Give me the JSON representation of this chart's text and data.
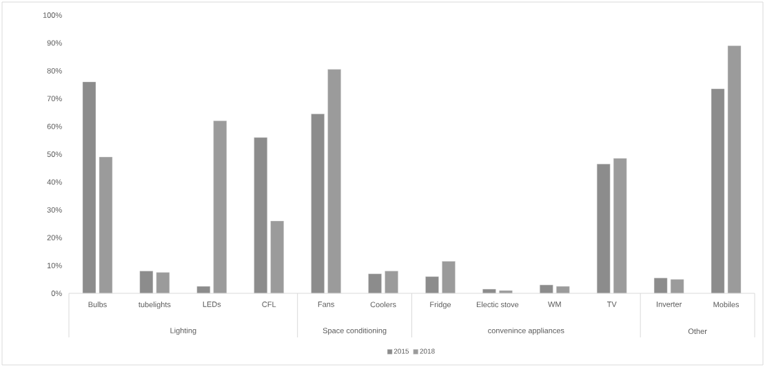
{
  "chart_data": {
    "type": "bar",
    "categories": [
      "Bulbs",
      "tubelights",
      "LEDs",
      "CFL",
      "Fans",
      "Coolers",
      "Fridge",
      "Electic stove",
      "WM",
      "TV",
      "Inverter",
      "Mobiles"
    ],
    "series": [
      {
        "name": "2015",
        "color": "#8c8c8c",
        "values": [
          76,
          8,
          2.5,
          56,
          64.5,
          7,
          6,
          1.5,
          3,
          46.5,
          5.5,
          73.5
        ]
      },
      {
        "name": "2018",
        "color": "#9b9b9b",
        "values": [
          49,
          7.5,
          62,
          26,
          80.5,
          8,
          11.5,
          1,
          2.5,
          48.5,
          5,
          89
        ]
      }
    ],
    "ylim": [
      0,
      100
    ],
    "yticks": [
      {
        "value": 0,
        "label": "0%"
      },
      {
        "value": 10,
        "label": "10%"
      },
      {
        "value": 20,
        "label": "20%"
      },
      {
        "value": 30,
        "label": "30%"
      },
      {
        "value": 40,
        "label": "40%"
      },
      {
        "value": 50,
        "label": "50%"
      },
      {
        "value": 60,
        "label": "60%"
      },
      {
        "value": 70,
        "label": "70%"
      },
      {
        "value": 80,
        "label": "80%"
      },
      {
        "value": 90,
        "label": "90%"
      },
      {
        "value": 100,
        "label": "100%"
      }
    ],
    "annotations": [
      "Lighting",
      "Space conditioning",
      "convenince appliances",
      "Other"
    ],
    "legend": "bottom"
  }
}
